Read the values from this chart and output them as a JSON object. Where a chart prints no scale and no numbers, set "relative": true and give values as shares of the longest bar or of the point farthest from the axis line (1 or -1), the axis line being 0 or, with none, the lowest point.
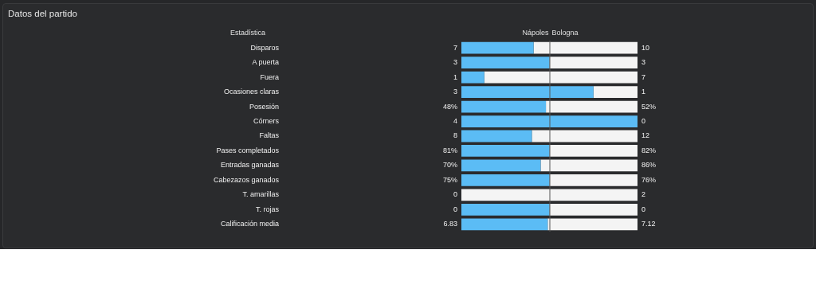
{
  "chart_data": {
    "type": "bar",
    "orientation": "horizontal",
    "stacked": true,
    "relative": true,
    "title": "Datos del partido",
    "ylabel": "Estadística",
    "categories": [
      "Disparos",
      "A puerta",
      "Fuera",
      "Ocasiones claras",
      "Posesión",
      "Córners",
      "Faltas",
      "Pases completados",
      "Entradas ganadas",
      "Cabezazos ganados",
      "T. amarillas",
      "T. rojas",
      "Calificación media"
    ],
    "series": [
      {
        "name": "Nápoles",
        "color": "#5bbcf5",
        "values": [
          0.41,
          0.5,
          0.13,
          0.75,
          0.48,
          1,
          0.4,
          0.5,
          0.45,
          0.5,
          0,
          0.5,
          0.49
        ]
      },
      {
        "name": "Bologna",
        "color": "#f4f4f4",
        "values": [
          0.59,
          0.5,
          0.87,
          0.25,
          0.52,
          0,
          0.6,
          0.5,
          0.55,
          0.5,
          1,
          0.5,
          0.51
        ]
      }
    ],
    "ref_lines": [
      {
        "axis": "x",
        "value": 0.5,
        "color": "#555555"
      }
    ],
    "annotations": [
      "7",
      "10",
      "3",
      "3",
      "1",
      "7",
      "3",
      "1",
      "48%",
      "52%",
      "4",
      "0",
      "8",
      "12",
      "81%",
      "82%",
      "70%",
      "86%",
      "75%",
      "76%",
      "0",
      "2",
      "0",
      "0",
      "6.83",
      "7.12"
    ]
  }
}
